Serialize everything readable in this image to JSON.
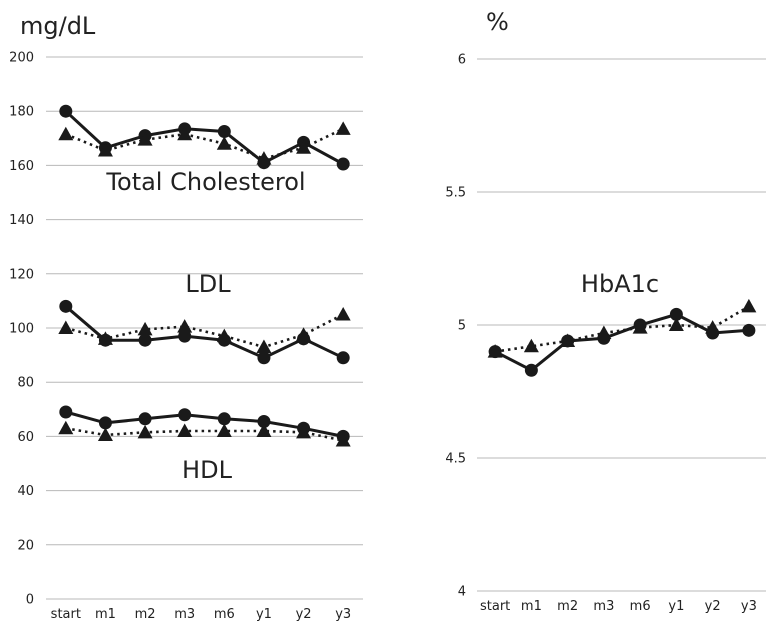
{
  "chart_data": [
    {
      "type": "line",
      "unit_label": "mg/dL",
      "categories": [
        "start",
        "m1",
        "m2",
        "m3",
        "m6",
        "y1",
        "y2",
        "y3"
      ],
      "ylim": [
        0,
        200
      ],
      "yticks": [
        0,
        20,
        40,
        60,
        80,
        100,
        120,
        140,
        160,
        180,
        200
      ],
      "grid": true,
      "annotations": [
        "Total Cholesterol",
        "LDL",
        "HDL"
      ],
      "groups": [
        {
          "label": "Total Cholesterol",
          "series": [
            {
              "marker": "circle",
              "style": "solid",
              "values": [
                180,
                166.5,
                171,
                173.5,
                172.5,
                161,
                168.5,
                160.5
              ]
            },
            {
              "marker": "triangle",
              "style": "dotted",
              "values": [
                171.5,
                165.5,
                169.5,
                171.5,
                168,
                162.5,
                166.5,
                173.5
              ]
            }
          ]
        },
        {
          "label": "LDL",
          "series": [
            {
              "marker": "circle",
              "style": "solid",
              "values": [
                108,
                95.5,
                95.5,
                97,
                95.5,
                89,
                96,
                89
              ]
            },
            {
              "marker": "triangle",
              "style": "dotted",
              "values": [
                100,
                96,
                99.5,
                100.5,
                97,
                93,
                97.5,
                105
              ]
            }
          ]
        },
        {
          "label": "HDL",
          "series": [
            {
              "marker": "circle",
              "style": "solid",
              "values": [
                69,
                65,
                66.5,
                68,
                66.5,
                65.5,
                63,
                60
              ]
            },
            {
              "marker": "triangle",
              "style": "dotted",
              "values": [
                63,
                60.5,
                61.5,
                62,
                62,
                62,
                61.5,
                58.5
              ]
            }
          ]
        }
      ]
    },
    {
      "type": "line",
      "unit_label": "%",
      "categories": [
        "start",
        "m1",
        "m2",
        "m3",
        "m6",
        "y1",
        "y2",
        "y3"
      ],
      "ylim": [
        4,
        6
      ],
      "yticks": [
        "4",
        "4.5",
        "5",
        "5.5",
        "6"
      ],
      "grid": true,
      "annotations": [
        "HbA1c"
      ],
      "groups": [
        {
          "label": "HbA1c",
          "series": [
            {
              "marker": "circle",
              "style": "solid",
              "values": [
                4.9,
                4.83,
                4.94,
                4.95,
                5.0,
                5.04,
                4.97,
                4.98
              ]
            },
            {
              "marker": "triangle",
              "style": "dotted",
              "values": [
                4.9,
                4.92,
                4.94,
                4.97,
                4.99,
                5.0,
                4.99,
                5.07
              ]
            }
          ]
        }
      ]
    }
  ]
}
